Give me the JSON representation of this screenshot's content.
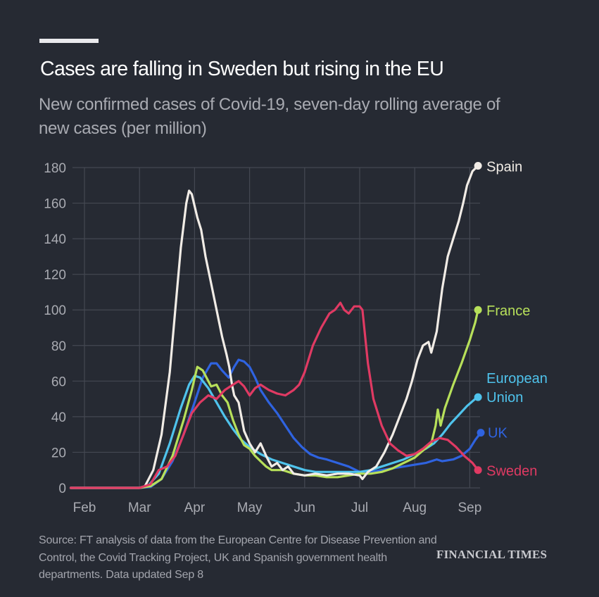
{
  "header": {
    "title": "Cases are falling in Sweden but rising in the EU",
    "subtitle": "New confirmed cases of Covid-19, seven-day rolling average of new cases (per million)"
  },
  "footer": {
    "source": "Source: FT analysis of data from the European Centre for Disease Prevention and Control, the Covid Tracking Project, UK and Spanish government health departments. Data updated Sep 8",
    "brand": "FINANCIAL TIMES"
  },
  "colors": {
    "background": "#262a33",
    "grid": "#444852",
    "axis_text": "#a9abb2"
  },
  "chart_data": {
    "type": "line",
    "title": "Cases are falling in Sweden but rising in the EU",
    "subtitle": "New confirmed cases of Covid-19, seven-day rolling average of new cases (per million)",
    "xlabel": "",
    "ylabel": "",
    "x_unit": "months since Feb 1, 2020 (0 = Feb, 7 = Sep)",
    "x_ticks": [
      0,
      1,
      2,
      3,
      4,
      5,
      6,
      7
    ],
    "x_tick_labels": [
      "Feb",
      "Mar",
      "Apr",
      "May",
      "Jun",
      "Jul",
      "Aug",
      "Sep"
    ],
    "xlim": [
      -0.25,
      7.2
    ],
    "y_ticks": [
      0,
      20,
      40,
      60,
      80,
      100,
      120,
      140,
      160,
      180
    ],
    "y_tick_labels": [
      "0",
      "20",
      "40",
      "60",
      "80",
      "100",
      "120",
      "140",
      "160",
      "180"
    ],
    "ylim": [
      0,
      180
    ],
    "grid": true,
    "legend": "direct labels at line ends (right)",
    "series": [
      {
        "name": "UK",
        "label": "UK",
        "color": "#2f63e0",
        "points": [
          [
            -0.25,
            0
          ],
          [
            1.0,
            0
          ],
          [
            1.2,
            0.5
          ],
          [
            1.4,
            5
          ],
          [
            1.6,
            15
          ],
          [
            1.8,
            30
          ],
          [
            2.0,
            48
          ],
          [
            2.15,
            62
          ],
          [
            2.3,
            70
          ],
          [
            2.4,
            70
          ],
          [
            2.5,
            66
          ],
          [
            2.62,
            62
          ],
          [
            2.72,
            68
          ],
          [
            2.8,
            72
          ],
          [
            2.9,
            71
          ],
          [
            3.0,
            68
          ],
          [
            3.1,
            62
          ],
          [
            3.2,
            55
          ],
          [
            3.35,
            48
          ],
          [
            3.5,
            42
          ],
          [
            3.65,
            35
          ],
          [
            3.8,
            28
          ],
          [
            3.95,
            23
          ],
          [
            4.1,
            19
          ],
          [
            4.25,
            17
          ],
          [
            4.4,
            16
          ],
          [
            4.6,
            14
          ],
          [
            4.8,
            12
          ],
          [
            5.0,
            9
          ],
          [
            5.2,
            9
          ],
          [
            5.4,
            10
          ],
          [
            5.6,
            11
          ],
          [
            5.8,
            12
          ],
          [
            6.0,
            13
          ],
          [
            6.2,
            14
          ],
          [
            6.4,
            16
          ],
          [
            6.5,
            15
          ],
          [
            6.7,
            16
          ],
          [
            6.85,
            18
          ],
          [
            7.0,
            22
          ],
          [
            7.1,
            27
          ],
          [
            7.2,
            31
          ]
        ]
      },
      {
        "name": "European Union",
        "label": "European\nUnion",
        "color": "#4fc3ec",
        "points": [
          [
            -0.25,
            0
          ],
          [
            1.0,
            0
          ],
          [
            1.15,
            1
          ],
          [
            1.35,
            8
          ],
          [
            1.55,
            25
          ],
          [
            1.75,
            45
          ],
          [
            1.9,
            58
          ],
          [
            2.0,
            63
          ],
          [
            2.1,
            62
          ],
          [
            2.25,
            56
          ],
          [
            2.4,
            48
          ],
          [
            2.55,
            40
          ],
          [
            2.7,
            33
          ],
          [
            2.85,
            27
          ],
          [
            3.0,
            23
          ],
          [
            3.2,
            19
          ],
          [
            3.4,
            16
          ],
          [
            3.6,
            14
          ],
          [
            3.8,
            12
          ],
          [
            4.0,
            10
          ],
          [
            4.2,
            9
          ],
          [
            4.4,
            9
          ],
          [
            4.6,
            9
          ],
          [
            4.8,
            9
          ],
          [
            5.0,
            9
          ],
          [
            5.2,
            10
          ],
          [
            5.4,
            12
          ],
          [
            5.6,
            14
          ],
          [
            5.8,
            16
          ],
          [
            6.0,
            19
          ],
          [
            6.2,
            22
          ],
          [
            6.35,
            25
          ],
          [
            6.5,
            30
          ],
          [
            6.65,
            36
          ],
          [
            6.8,
            41
          ],
          [
            6.95,
            46
          ],
          [
            7.1,
            50
          ],
          [
            7.15,
            51
          ]
        ]
      },
      {
        "name": "France",
        "label": "France",
        "color": "#b7e05a",
        "points": [
          [
            -0.25,
            0
          ],
          [
            1.0,
            0
          ],
          [
            1.2,
            1
          ],
          [
            1.4,
            5
          ],
          [
            1.6,
            18
          ],
          [
            1.8,
            38
          ],
          [
            1.95,
            55
          ],
          [
            2.05,
            68
          ],
          [
            2.15,
            66
          ],
          [
            2.3,
            57
          ],
          [
            2.4,
            58
          ],
          [
            2.5,
            52
          ],
          [
            2.6,
            48
          ],
          [
            2.7,
            38
          ],
          [
            2.8,
            30
          ],
          [
            2.9,
            24
          ],
          [
            3.0,
            22
          ],
          [
            3.1,
            18
          ],
          [
            3.2,
            15
          ],
          [
            3.3,
            12
          ],
          [
            3.4,
            10
          ],
          [
            3.6,
            10
          ],
          [
            3.8,
            8
          ],
          [
            4.0,
            7
          ],
          [
            4.2,
            7
          ],
          [
            4.4,
            6
          ],
          [
            4.6,
            6
          ],
          [
            4.8,
            7
          ],
          [
            5.0,
            8
          ],
          [
            5.2,
            8
          ],
          [
            5.4,
            9
          ],
          [
            5.6,
            11
          ],
          [
            5.8,
            14
          ],
          [
            6.0,
            17
          ],
          [
            6.15,
            21
          ],
          [
            6.3,
            25
          ],
          [
            6.38,
            35
          ],
          [
            6.42,
            44
          ],
          [
            6.47,
            35
          ],
          [
            6.55,
            45
          ],
          [
            6.7,
            58
          ],
          [
            6.85,
            70
          ],
          [
            7.0,
            83
          ],
          [
            7.1,
            93
          ],
          [
            7.15,
            100
          ]
        ]
      },
      {
        "name": "Spain",
        "label": "Spain",
        "color": "#f1ece6",
        "points": [
          [
            -0.25,
            0
          ],
          [
            1.0,
            0
          ],
          [
            1.1,
            1
          ],
          [
            1.25,
            10
          ],
          [
            1.4,
            30
          ],
          [
            1.55,
            65
          ],
          [
            1.65,
            100
          ],
          [
            1.75,
            135
          ],
          [
            1.85,
            160
          ],
          [
            1.9,
            167
          ],
          [
            1.95,
            165
          ],
          [
            2.05,
            152
          ],
          [
            2.12,
            145
          ],
          [
            2.2,
            130
          ],
          [
            2.3,
            115
          ],
          [
            2.4,
            100
          ],
          [
            2.5,
            85
          ],
          [
            2.58,
            75
          ],
          [
            2.63,
            68
          ],
          [
            2.68,
            58
          ],
          [
            2.72,
            52
          ],
          [
            2.8,
            48
          ],
          [
            2.85,
            40
          ],
          [
            2.9,
            32
          ],
          [
            3.0,
            25
          ],
          [
            3.1,
            20
          ],
          [
            3.2,
            25
          ],
          [
            3.3,
            18
          ],
          [
            3.4,
            12
          ],
          [
            3.5,
            14
          ],
          [
            3.6,
            10
          ],
          [
            3.7,
            12
          ],
          [
            3.8,
            8
          ],
          [
            4.0,
            7
          ],
          [
            4.2,
            8
          ],
          [
            4.4,
            7
          ],
          [
            4.6,
            8
          ],
          [
            4.8,
            8
          ],
          [
            5.0,
            7
          ],
          [
            5.05,
            5
          ],
          [
            5.15,
            9
          ],
          [
            5.3,
            12
          ],
          [
            5.45,
            20
          ],
          [
            5.6,
            30
          ],
          [
            5.75,
            42
          ],
          [
            5.85,
            50
          ],
          [
            5.95,
            60
          ],
          [
            6.05,
            72
          ],
          [
            6.15,
            80
          ],
          [
            6.25,
            82
          ],
          [
            6.3,
            76
          ],
          [
            6.4,
            88
          ],
          [
            6.5,
            112
          ],
          [
            6.6,
            130
          ],
          [
            6.7,
            140
          ],
          [
            6.8,
            150
          ],
          [
            6.88,
            160
          ],
          [
            6.95,
            170
          ],
          [
            7.05,
            178
          ],
          [
            7.15,
            181
          ]
        ]
      },
      {
        "name": "Sweden",
        "label": "Sweden",
        "color": "#e03a63",
        "points": [
          [
            -0.25,
            0
          ],
          [
            1.0,
            0
          ],
          [
            1.2,
            2
          ],
          [
            1.35,
            10
          ],
          [
            1.5,
            12
          ],
          [
            1.65,
            18
          ],
          [
            1.8,
            30
          ],
          [
            1.95,
            42
          ],
          [
            2.1,
            48
          ],
          [
            2.25,
            52
          ],
          [
            2.4,
            50
          ],
          [
            2.55,
            55
          ],
          [
            2.7,
            58
          ],
          [
            2.8,
            60
          ],
          [
            2.9,
            57
          ],
          [
            3.0,
            52
          ],
          [
            3.1,
            56
          ],
          [
            3.2,
            58
          ],
          [
            3.35,
            55
          ],
          [
            3.5,
            53
          ],
          [
            3.65,
            52
          ],
          [
            3.8,
            55
          ],
          [
            3.9,
            58
          ],
          [
            4.0,
            65
          ],
          [
            4.15,
            80
          ],
          [
            4.3,
            90
          ],
          [
            4.45,
            98
          ],
          [
            4.55,
            100
          ],
          [
            4.65,
            104
          ],
          [
            4.72,
            100
          ],
          [
            4.8,
            98
          ],
          [
            4.9,
            102
          ],
          [
            5.0,
            102
          ],
          [
            5.05,
            100
          ],
          [
            5.15,
            70
          ],
          [
            5.25,
            50
          ],
          [
            5.4,
            35
          ],
          [
            5.55,
            25
          ],
          [
            5.7,
            21
          ],
          [
            5.85,
            18
          ],
          [
            6.0,
            19
          ],
          [
            6.15,
            22
          ],
          [
            6.3,
            26
          ],
          [
            6.45,
            28
          ],
          [
            6.6,
            27
          ],
          [
            6.75,
            23
          ],
          [
            6.9,
            18
          ],
          [
            7.05,
            14
          ],
          [
            7.15,
            10
          ]
        ]
      }
    ]
  }
}
